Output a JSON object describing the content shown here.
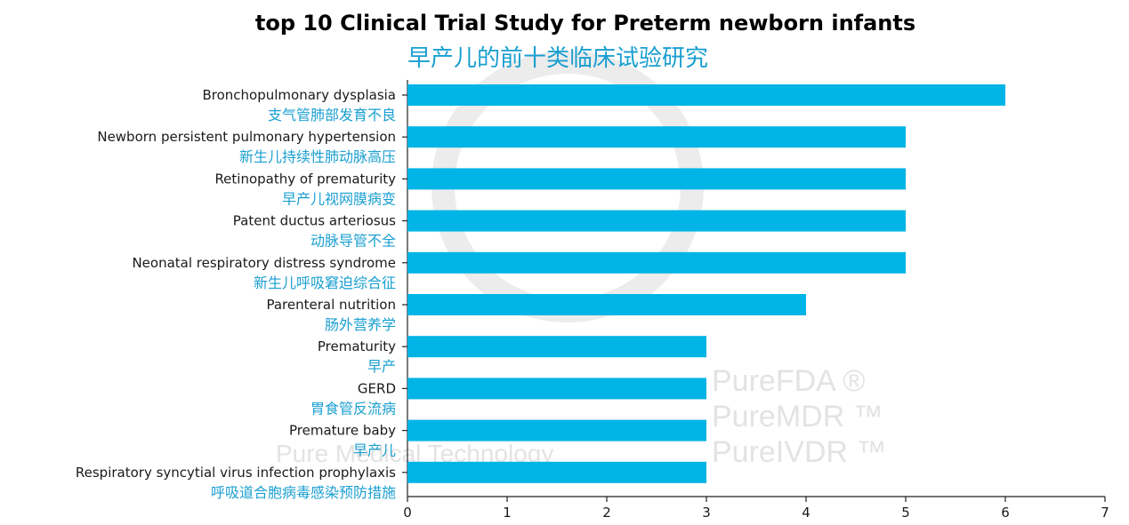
{
  "colors": {
    "bar": "#00b4e5",
    "accent_text": "#1a9fd0",
    "watermark": "#e3e3e3"
  },
  "watermark": {
    "brand_lines": [
      "PureFDA ®",
      "PureMDR ™",
      "PureIVDR ™"
    ],
    "company": "Pure Medical Technology"
  },
  "chart_data": {
    "type": "bar",
    "orientation": "horizontal",
    "title": "top 10 Clinical Trial Study for Preterm newborn infants",
    "subtitle": "早产儿的前十类临床试验研究",
    "xlabel": "",
    "ylabel": "",
    "xlim": [
      0,
      7
    ],
    "xticks": [
      "0",
      "1",
      "2",
      "3",
      "4",
      "5",
      "6",
      "7"
    ],
    "grid": false,
    "categories": [
      {
        "en": "Bronchopulmonary dysplasia",
        "zh": "支气管肺部发育不良"
      },
      {
        "en": "Newborn persistent pulmonary hypertension",
        "zh": "新生儿持续性肺动脉高压"
      },
      {
        "en": "Retinopathy of prematurity",
        "zh": "早产儿视网膜病变"
      },
      {
        "en": "Patent ductus arteriosus",
        "zh": "动脉导管不全"
      },
      {
        "en": "Neonatal respiratory distress syndrome",
        "zh": "新生儿呼吸窘迫综合征"
      },
      {
        "en": "Parenteral nutrition",
        "zh": "肠外营养学"
      },
      {
        "en": "Prematurity",
        "zh": "早产"
      },
      {
        "en": "GERD",
        "zh": "胃食管反流病"
      },
      {
        "en": "Premature baby",
        "zh": "早产儿"
      },
      {
        "en": "Respiratory syncytial virus infection prophylaxis",
        "zh": "呼吸道合胞病毒感染预防措施"
      }
    ],
    "values": [
      6,
      5,
      5,
      5,
      5,
      4,
      3,
      3,
      3,
      3
    ]
  }
}
